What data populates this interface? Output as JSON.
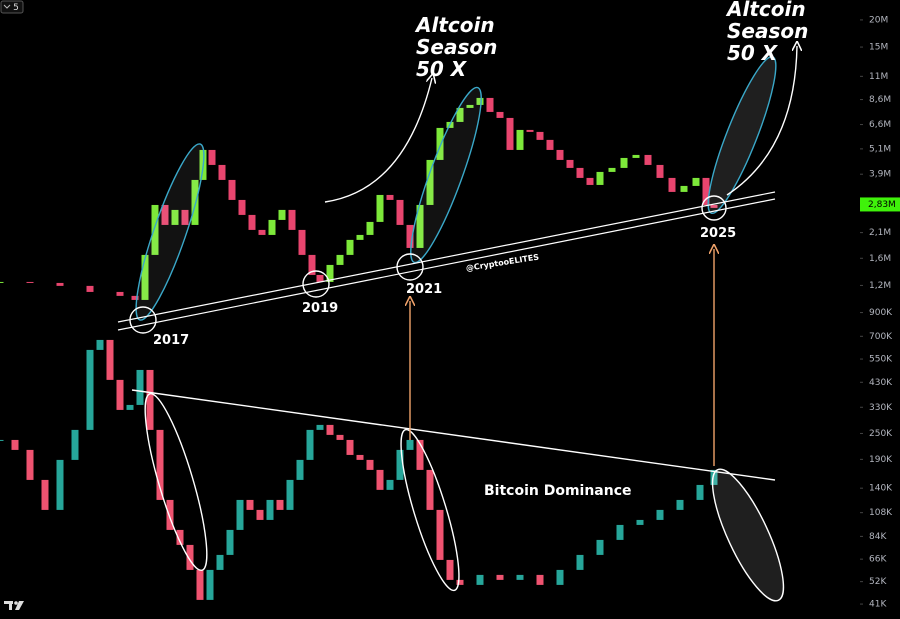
{
  "chart_data": {
    "type": "candlestick",
    "log_y": true,
    "interval": "5",
    "xlim": [
      2015,
      2025.75
    ],
    "ylim": [
      35000,
      24700000
    ],
    "yticks": [
      {
        "value": 20000000,
        "label": "20M"
      },
      {
        "value": 15000000,
        "label": "15M"
      },
      {
        "value": 11000000,
        "label": "11M"
      },
      {
        "value": 8600000,
        "label": "8,6M"
      },
      {
        "value": 6600000,
        "label": "6,6M"
      },
      {
        "value": 5100000,
        "label": "5,1M"
      },
      {
        "value": 3900000,
        "label": "3,9M"
      },
      {
        "value": 2100000,
        "label": "2,1M"
      },
      {
        "value": 1600000,
        "label": "1,6M"
      },
      {
        "value": 1200000,
        "label": "1,2M"
      },
      {
        "value": 900000,
        "label": "900K"
      },
      {
        "value": 700000,
        "label": "700K"
      },
      {
        "value": 550000,
        "label": "550K"
      },
      {
        "value": 430000,
        "label": "430K"
      },
      {
        "value": 330000,
        "label": "330K"
      },
      {
        "value": 250000,
        "label": "250K"
      },
      {
        "value": 190000,
        "label": "190K"
      },
      {
        "value": 140000,
        "label": "140K"
      },
      {
        "value": 108000,
        "label": "108K"
      },
      {
        "value": 84000,
        "label": "84K"
      },
      {
        "value": 66000,
        "label": "66K"
      },
      {
        "value": 52000,
        "label": "52K"
      },
      {
        "value": 41000,
        "label": "41K"
      }
    ],
    "last_price": {
      "value": 2830000,
      "label": "2,83M"
    },
    "last_price_color": "#3ff20a",
    "annotations": [
      {
        "text": "Altcoin Season 50 X"
      },
      {
        "text": "Altcoin Season 50 X"
      },
      {
        "text": "2017"
      },
      {
        "text": "2019"
      },
      {
        "text": "2021"
      },
      {
        "text": "2025"
      },
      {
        "text": "@CryptooELITES"
      },
      {
        "text": "Bitcoin Dominance"
      }
    ],
    "series": [
      {
        "up_color": "#7de83a",
        "down_color": "#e8456e",
        "x": [
          2015,
          2015.375,
          2015.75,
          2016.125,
          2016.5,
          2016.6875,
          2016.8125,
          2016.9375,
          2017.0625,
          2017.1875,
          2017.3125,
          2017.4375,
          2017.5375,
          2017.65,
          2017.775,
          2017.9,
          2018.025,
          2018.15,
          2018.275,
          2018.4,
          2018.525,
          2018.65,
          2018.775,
          2018.9,
          2019,
          2019.125,
          2019.25,
          2019.375,
          2019.5,
          2019.625,
          2019.75,
          2019.875,
          2020,
          2020.125,
          2020.25,
          2020.375,
          2020.5,
          2020.625,
          2020.75,
          2020.875,
          2021,
          2021.125,
          2021.25,
          2021.375,
          2021.5,
          2021.625,
          2021.75,
          2021.875,
          2022,
          2022.125,
          2022.25,
          2022.375,
          2022.5,
          2022.65,
          2022.8,
          2022.95,
          2023.1,
          2023.25,
          2023.4,
          2023.55,
          2023.7,
          2023.825,
          2023.925
        ],
        "values": [
          1245000,
          1232000,
          1194000,
          1120000,
          1074000,
          1029000,
          1658000,
          2815000,
          2278000,
          2671000,
          2278000,
          3670000,
          5043000,
          4302000,
          3670000,
          2969000,
          2533000,
          2161000,
          2049000,
          2402000,
          2671000,
          2161000,
          1658000,
          1341000,
          1245000,
          1491000,
          1658000,
          1944000,
          2049000,
          2352000,
          3130000,
          2969000,
          2278000,
          1785000,
          2815000,
          4536000,
          6368000,
          6785000,
          7870000,
          8124000,
          8750000,
          7543000,
          7079000,
          5043000,
          6234000,
          6104000,
          5609000,
          5043000,
          4536000,
          4168000,
          3749000,
          3480000,
          3995000,
          4168000,
          4633000,
          4783000,
          4302000,
          3749000,
          3232000,
          3444000,
          3749000,
          2815000,
          2728000
        ]
      },
      {
        "up_color": "#26a69a",
        "down_color": "#ef5370",
        "x": [
          2015,
          2015.1875,
          2015.375,
          2015.5625,
          2015.75,
          2015.9375,
          2016.125,
          2016.25,
          2016.375,
          2016.5,
          2016.625,
          2016.75,
          2016.875,
          2017,
          2017.125,
          2017.25,
          2017.375,
          2017.5,
          2017.625,
          2017.75,
          2017.875,
          2018,
          2018.125,
          2018.25,
          2018.375,
          2018.5,
          2018.625,
          2018.75,
          2018.875,
          2019,
          2019.125,
          2019.25,
          2019.375,
          2019.5,
          2019.625,
          2019.75,
          2019.875,
          2020,
          2020.125,
          2020.25,
          2020.375,
          2020.5,
          2020.625,
          2020.75,
          2021,
          2021.25,
          2021.5,
          2021.75,
          2022,
          2022.25,
          2022.5,
          2022.75,
          2023,
          2023.25,
          2023.5,
          2023.75,
          2023.925
        ],
        "values": [
          233400,
          210000,
          152800,
          111200,
          188900,
          259600,
          605900,
          673500,
          441000,
          320800,
          338200,
          490000,
          259600,
          123600,
          89950,
          76740,
          58880,
          42850,
          58880,
          69020,
          89950,
          123600,
          111200,
          100000,
          123600,
          111200,
          152800,
          188900,
          259600,
          273700,
          246200,
          233400,
          199100,
          188900,
          169900,
          137500,
          152800,
          210000,
          233400,
          169900,
          111200,
          65460,
          52970,
          50230,
          55850,
          52970,
          55850,
          50230,
          58880,
          69020,
          80910,
          94840,
          100000,
          111200,
          123600,
          144900,
          169900
        ]
      }
    ]
  }
}
